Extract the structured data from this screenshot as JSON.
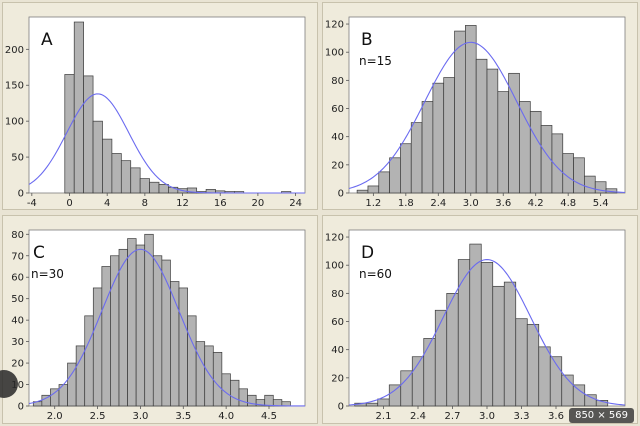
{
  "badge": {
    "dimensions_text": "850 × 569"
  },
  "colors": {
    "bar_fill": "#b3b3b3",
    "bar_stroke": "#3a3a3a",
    "curve": "#6b6bf0",
    "plot_bg": "#ffffff",
    "panel_bg": "#efebdc"
  },
  "chart_data": [
    {
      "type": "bar",
      "panel_label": "A",
      "n_label": "",
      "bin_width": 1,
      "x_ticks": [
        -4,
        0,
        4,
        8,
        12,
        16,
        20,
        24
      ],
      "y_ticks": [
        0,
        50,
        100,
        150,
        200
      ],
      "xlim": [
        -4.3,
        25
      ],
      "ylim": [
        0,
        245
      ],
      "bins": [
        {
          "x": 0,
          "y": 165
        },
        {
          "x": 1,
          "y": 238
        },
        {
          "x": 2,
          "y": 163
        },
        {
          "x": 3,
          "y": 100
        },
        {
          "x": 4,
          "y": 75
        },
        {
          "x": 5,
          "y": 55
        },
        {
          "x": 6,
          "y": 45
        },
        {
          "x": 7,
          "y": 35
        },
        {
          "x": 8,
          "y": 20
        },
        {
          "x": 9,
          "y": 15
        },
        {
          "x": 10,
          "y": 12
        },
        {
          "x": 11,
          "y": 8
        },
        {
          "x": 12,
          "y": 6
        },
        {
          "x": 13,
          "y": 7
        },
        {
          "x": 14,
          "y": 2
        },
        {
          "x": 15,
          "y": 5
        },
        {
          "x": 16,
          "y": 3
        },
        {
          "x": 17,
          "y": 2
        },
        {
          "x": 18,
          "y": 2
        },
        {
          "x": 23,
          "y": 2
        }
      ],
      "normal_curve": {
        "mean": 3,
        "sd": 3.3,
        "peak": 138
      }
    },
    {
      "type": "bar",
      "panel_label": "B",
      "n_label": "n=15",
      "bin_width": 0.2,
      "x_ticks": [
        1.2,
        1.8,
        2.4,
        3.0,
        3.6,
        4.2,
        4.8,
        5.4
      ],
      "x_tick_labels": [
        "1.2",
        "1.8",
        "2.4",
        "3.0",
        "3.6",
        "4.2",
        "4.8",
        "5.4"
      ],
      "y_ticks": [
        0,
        20,
        40,
        60,
        80,
        100,
        120
      ],
      "xlim": [
        0.75,
        5.85
      ],
      "ylim": [
        0,
        125
      ],
      "bins": [
        {
          "x": 1.0,
          "y": 2
        },
        {
          "x": 1.2,
          "y": 5
        },
        {
          "x": 1.4,
          "y": 15
        },
        {
          "x": 1.6,
          "y": 25
        },
        {
          "x": 1.8,
          "y": 35
        },
        {
          "x": 2.0,
          "y": 50
        },
        {
          "x": 2.2,
          "y": 65
        },
        {
          "x": 2.4,
          "y": 78
        },
        {
          "x": 2.6,
          "y": 82
        },
        {
          "x": 2.8,
          "y": 115
        },
        {
          "x": 3.0,
          "y": 119
        },
        {
          "x": 3.2,
          "y": 95
        },
        {
          "x": 3.4,
          "y": 88
        },
        {
          "x": 3.6,
          "y": 72
        },
        {
          "x": 3.8,
          "y": 85
        },
        {
          "x": 4.0,
          "y": 65
        },
        {
          "x": 4.2,
          "y": 58
        },
        {
          "x": 4.4,
          "y": 48
        },
        {
          "x": 4.6,
          "y": 42
        },
        {
          "x": 4.8,
          "y": 28
        },
        {
          "x": 5.0,
          "y": 25
        },
        {
          "x": 5.2,
          "y": 12
        },
        {
          "x": 5.4,
          "y": 8
        },
        {
          "x": 5.6,
          "y": 3
        }
      ],
      "normal_curve": {
        "mean": 3,
        "sd": 0.85,
        "peak": 107
      }
    },
    {
      "type": "bar",
      "panel_label": "C",
      "n_label": "n=30",
      "bin_width": 0.1,
      "x_ticks": [
        2.0,
        2.5,
        3.0,
        3.5,
        4.0,
        4.5
      ],
      "x_tick_labels": [
        "2.0",
        "2.5",
        "3.0",
        "3.5",
        "4.0",
        "4.5"
      ],
      "y_ticks": [
        0,
        10,
        20,
        30,
        40,
        50,
        60,
        70,
        80
      ],
      "xlim": [
        1.7,
        4.92
      ],
      "ylim": [
        0,
        82
      ],
      "bins": [
        {
          "x": 1.8,
          "y": 2
        },
        {
          "x": 1.9,
          "y": 5
        },
        {
          "x": 2.0,
          "y": 8
        },
        {
          "x": 2.1,
          "y": 10
        },
        {
          "x": 2.2,
          "y": 20
        },
        {
          "x": 2.3,
          "y": 28
        },
        {
          "x": 2.4,
          "y": 42
        },
        {
          "x": 2.5,
          "y": 55
        },
        {
          "x": 2.6,
          "y": 65
        },
        {
          "x": 2.7,
          "y": 70
        },
        {
          "x": 2.8,
          "y": 73
        },
        {
          "x": 2.9,
          "y": 78
        },
        {
          "x": 3.0,
          "y": 75
        },
        {
          "x": 3.1,
          "y": 80
        },
        {
          "x": 3.2,
          "y": 70
        },
        {
          "x": 3.3,
          "y": 68
        },
        {
          "x": 3.4,
          "y": 58
        },
        {
          "x": 3.5,
          "y": 55
        },
        {
          "x": 3.6,
          "y": 42
        },
        {
          "x": 3.7,
          "y": 30
        },
        {
          "x": 3.8,
          "y": 28
        },
        {
          "x": 3.9,
          "y": 25
        },
        {
          "x": 4.0,
          "y": 15
        },
        {
          "x": 4.1,
          "y": 12
        },
        {
          "x": 4.2,
          "y": 8
        },
        {
          "x": 4.3,
          "y": 5
        },
        {
          "x": 4.4,
          "y": 3
        },
        {
          "x": 4.5,
          "y": 5
        },
        {
          "x": 4.6,
          "y": 3
        },
        {
          "x": 4.7,
          "y": 2
        }
      ],
      "normal_curve": {
        "mean": 3,
        "sd": 0.45,
        "peak": 73
      }
    },
    {
      "type": "bar",
      "panel_label": "D",
      "n_label": "n=60",
      "bin_width": 0.1,
      "x_ticks": [
        2.1,
        2.4,
        2.7,
        3.0,
        3.3,
        3.6
      ],
      "x_tick_labels": [
        "2.1",
        "2.4",
        "2.7",
        "3.0",
        "3.3",
        "3.6"
      ],
      "y_ticks": [
        0,
        20,
        40,
        60,
        80,
        100,
        120
      ],
      "xlim": [
        1.8,
        4.2
      ],
      "ylim": [
        0,
        125
      ],
      "bins": [
        {
          "x": 1.9,
          "y": 2
        },
        {
          "x": 2.0,
          "y": 2
        },
        {
          "x": 2.1,
          "y": 5
        },
        {
          "x": 2.2,
          "y": 15
        },
        {
          "x": 2.3,
          "y": 25
        },
        {
          "x": 2.4,
          "y": 35
        },
        {
          "x": 2.5,
          "y": 48
        },
        {
          "x": 2.6,
          "y": 68
        },
        {
          "x": 2.7,
          "y": 80
        },
        {
          "x": 2.8,
          "y": 104
        },
        {
          "x": 2.9,
          "y": 115
        },
        {
          "x": 3.0,
          "y": 102
        },
        {
          "x": 3.1,
          "y": 85
        },
        {
          "x": 3.2,
          "y": 88
        },
        {
          "x": 3.3,
          "y": 62
        },
        {
          "x": 3.4,
          "y": 58
        },
        {
          "x": 3.5,
          "y": 42
        },
        {
          "x": 3.6,
          "y": 35
        },
        {
          "x": 3.7,
          "y": 22
        },
        {
          "x": 3.8,
          "y": 15
        },
        {
          "x": 3.9,
          "y": 8
        },
        {
          "x": 4.0,
          "y": 4
        }
      ],
      "normal_curve": {
        "mean": 3,
        "sd": 0.38,
        "peak": 104
      }
    }
  ]
}
